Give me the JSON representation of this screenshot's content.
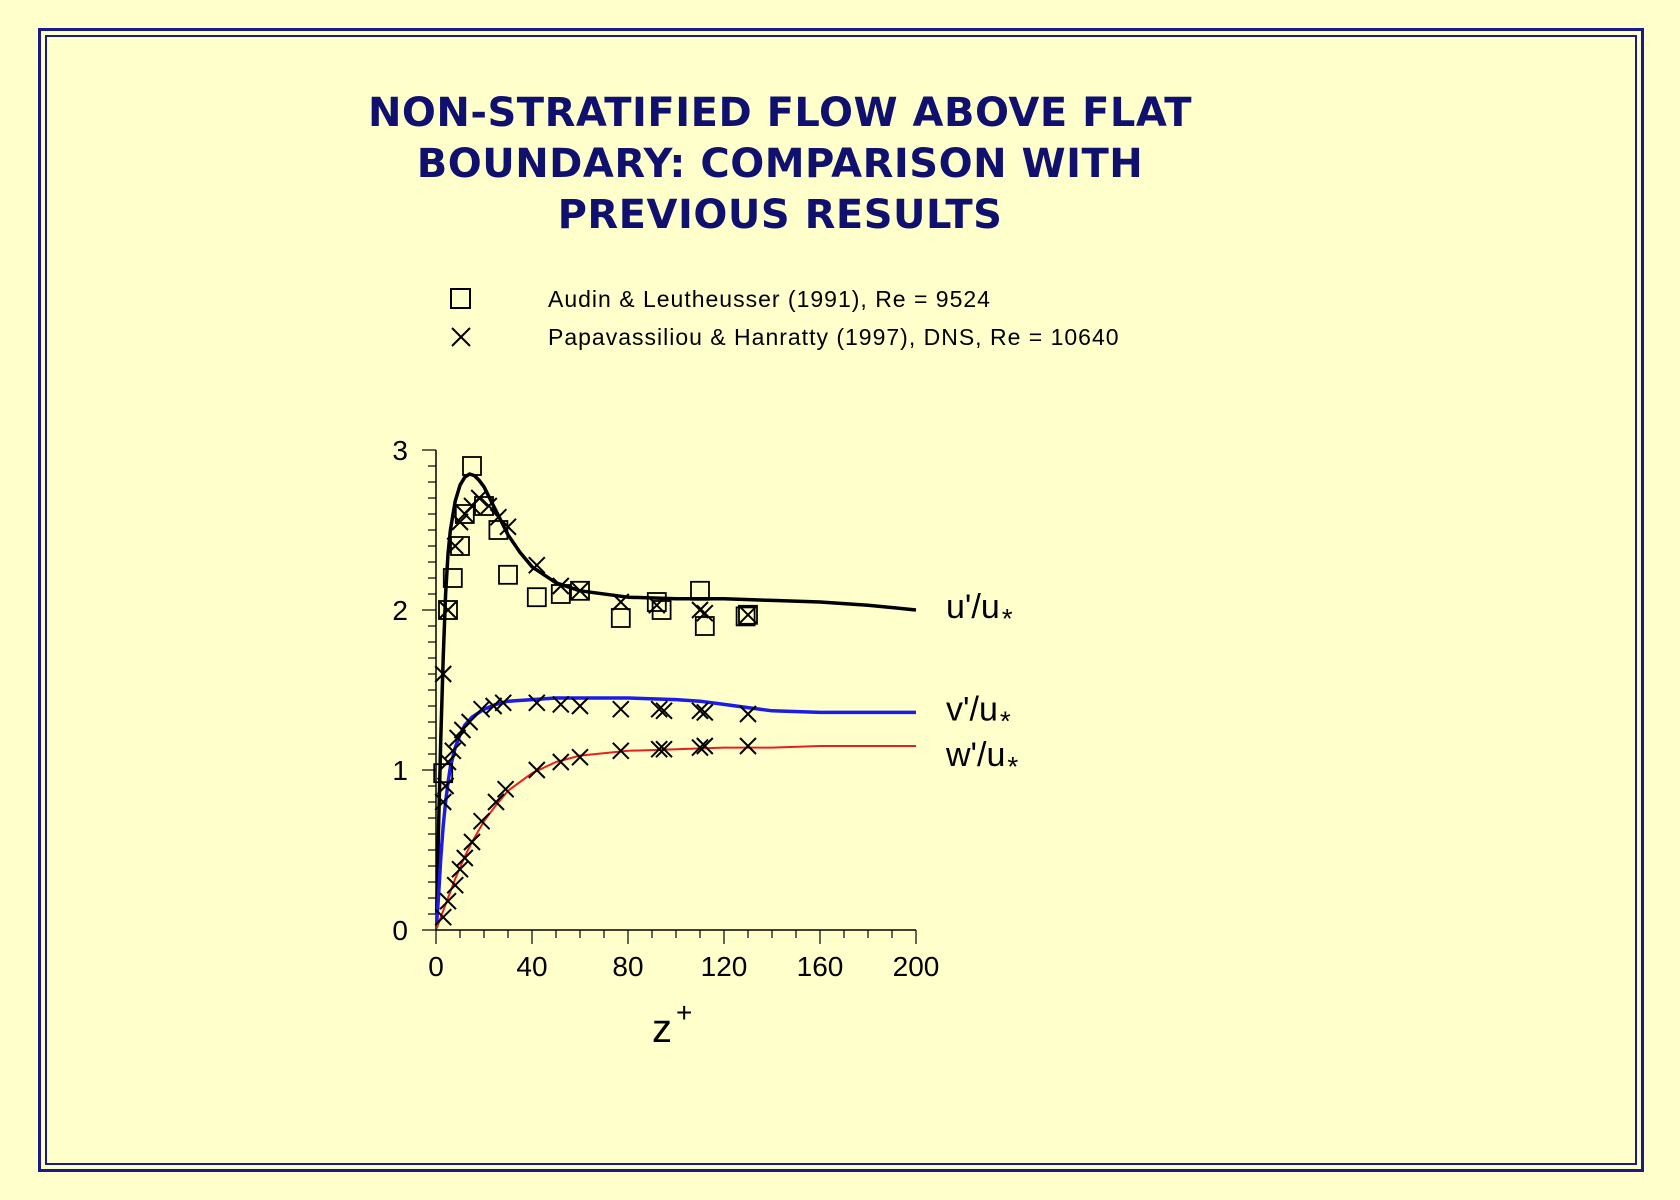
{
  "title_lines": [
    "NON-STRATIFIED FLOW ABOVE FLAT",
    "BOUNDARY: COMPARISON WITH",
    "PREVIOUS RESULTS"
  ],
  "legend": {
    "audin": "Audin & Leutheusser (1991), Re = 9524",
    "papa": "Papavassiliou & Hanratty (1997), DNS, Re = 10640"
  },
  "colors": {
    "frame": "#1a1a8c",
    "title": "#10106e",
    "u": "#000000",
    "v": "#1c1ce6",
    "w": "#e62020",
    "background": "#ffffcc"
  },
  "chart_data": {
    "type": "line",
    "xlabel": "z",
    "xlabel_sup": "+",
    "xlim": [
      0,
      200
    ],
    "ylim": [
      0,
      3
    ],
    "xticks": [
      0,
      40,
      80,
      120,
      160,
      200
    ],
    "yticks": [
      0,
      1,
      2,
      3
    ],
    "series": [
      {
        "name": "u'/u*",
        "label_main": "u'/u",
        "label_sub": "*",
        "color": "#000000",
        "width": 3.5,
        "x": [
          0.3,
          1,
          2,
          3,
          4,
          5,
          6,
          8,
          10,
          12,
          14,
          16,
          18,
          20,
          25,
          30,
          35,
          40,
          50,
          60,
          80,
          100,
          120,
          140,
          160,
          180,
          200
        ],
        "y": [
          0.1,
          0.6,
          1.2,
          1.7,
          2.1,
          2.35,
          2.5,
          2.68,
          2.78,
          2.83,
          2.85,
          2.84,
          2.81,
          2.77,
          2.62,
          2.47,
          2.36,
          2.27,
          2.17,
          2.12,
          2.08,
          2.07,
          2.07,
          2.06,
          2.05,
          2.03,
          2.0
        ]
      },
      {
        "name": "v'/u*",
        "label_main": "v'/u",
        "label_sub": "*",
        "color": "#1c1ce6",
        "width": 3.5,
        "x": [
          0.3,
          1,
          2,
          3,
          4,
          5,
          6,
          8,
          10,
          12,
          15,
          20,
          25,
          30,
          40,
          50,
          60,
          80,
          100,
          110,
          120,
          130,
          140,
          160,
          180,
          200
        ],
        "y": [
          0.05,
          0.2,
          0.45,
          0.65,
          0.8,
          0.92,
          1.02,
          1.14,
          1.22,
          1.28,
          1.33,
          1.38,
          1.41,
          1.43,
          1.44,
          1.45,
          1.45,
          1.45,
          1.44,
          1.43,
          1.41,
          1.39,
          1.37,
          1.36,
          1.36,
          1.36
        ]
      },
      {
        "name": "w'/u*",
        "label_main": "w'/u",
        "label_sub": "*",
        "color": "#e62020",
        "width": 2,
        "x": [
          0.3,
          2,
          4,
          6,
          8,
          10,
          12,
          15,
          20,
          25,
          30,
          40,
          50,
          60,
          80,
          100,
          120,
          140,
          160,
          180,
          200
        ],
        "y": [
          0.01,
          0.08,
          0.16,
          0.24,
          0.32,
          0.39,
          0.46,
          0.55,
          0.68,
          0.78,
          0.87,
          0.98,
          1.05,
          1.09,
          1.12,
          1.13,
          1.14,
          1.14,
          1.15,
          1.15,
          1.15
        ]
      }
    ],
    "markers": {
      "audin_squares": [
        [
          3,
          0.98
        ],
        [
          5,
          2.0
        ],
        [
          7,
          2.2
        ],
        [
          10,
          2.4
        ],
        [
          12,
          2.6
        ],
        [
          15,
          2.9
        ],
        [
          20,
          2.65
        ],
        [
          26,
          2.5
        ],
        [
          30,
          2.22
        ],
        [
          42,
          2.08
        ],
        [
          52,
          2.1
        ],
        [
          60,
          2.12
        ],
        [
          77,
          1.95
        ],
        [
          92,
          2.05
        ],
        [
          94,
          2.0
        ],
        [
          110,
          2.12
        ],
        [
          112,
          1.9
        ],
        [
          129,
          1.96
        ],
        [
          130,
          1.97
        ]
      ],
      "papa_crosses": [
        [
          3,
          1.6
        ],
        [
          5,
          2.0
        ],
        [
          8,
          2.4
        ],
        [
          10,
          2.55
        ],
        [
          12,
          2.6
        ],
        [
          15,
          2.65
        ],
        [
          18,
          2.7
        ],
        [
          22,
          2.65
        ],
        [
          26,
          2.58
        ],
        [
          30,
          2.52
        ],
        [
          42,
          2.28
        ],
        [
          52,
          2.15
        ],
        [
          60,
          2.12
        ],
        [
          77,
          2.05
        ],
        [
          92,
          2.03
        ],
        [
          110,
          2.0
        ],
        [
          112,
          1.98
        ],
        [
          130,
          1.97
        ],
        [
          3,
          0.8
        ],
        [
          4,
          0.9
        ],
        [
          5,
          1.05
        ],
        [
          7,
          1.12
        ],
        [
          9,
          1.2
        ],
        [
          11,
          1.25
        ],
        [
          14,
          1.3
        ],
        [
          19,
          1.38
        ],
        [
          24,
          1.4
        ],
        [
          28,
          1.42
        ],
        [
          42,
          1.42
        ],
        [
          52,
          1.41
        ],
        [
          60,
          1.4
        ],
        [
          77,
          1.38
        ],
        [
          93,
          1.38
        ],
        [
          95,
          1.37
        ],
        [
          110,
          1.37
        ],
        [
          112,
          1.36
        ],
        [
          130,
          1.35
        ],
        [
          3,
          0.08
        ],
        [
          5,
          0.18
        ],
        [
          8,
          0.28
        ],
        [
          10,
          0.38
        ],
        [
          12,
          0.45
        ],
        [
          15,
          0.55
        ],
        [
          19,
          0.68
        ],
        [
          25,
          0.8
        ],
        [
          29,
          0.88
        ],
        [
          42,
          1.0
        ],
        [
          52,
          1.05
        ],
        [
          60,
          1.08
        ],
        [
          77,
          1.12
        ],
        [
          93,
          1.13
        ],
        [
          95,
          1.13
        ],
        [
          110,
          1.14
        ],
        [
          112,
          1.15
        ],
        [
          130,
          1.15
        ]
      ]
    }
  }
}
